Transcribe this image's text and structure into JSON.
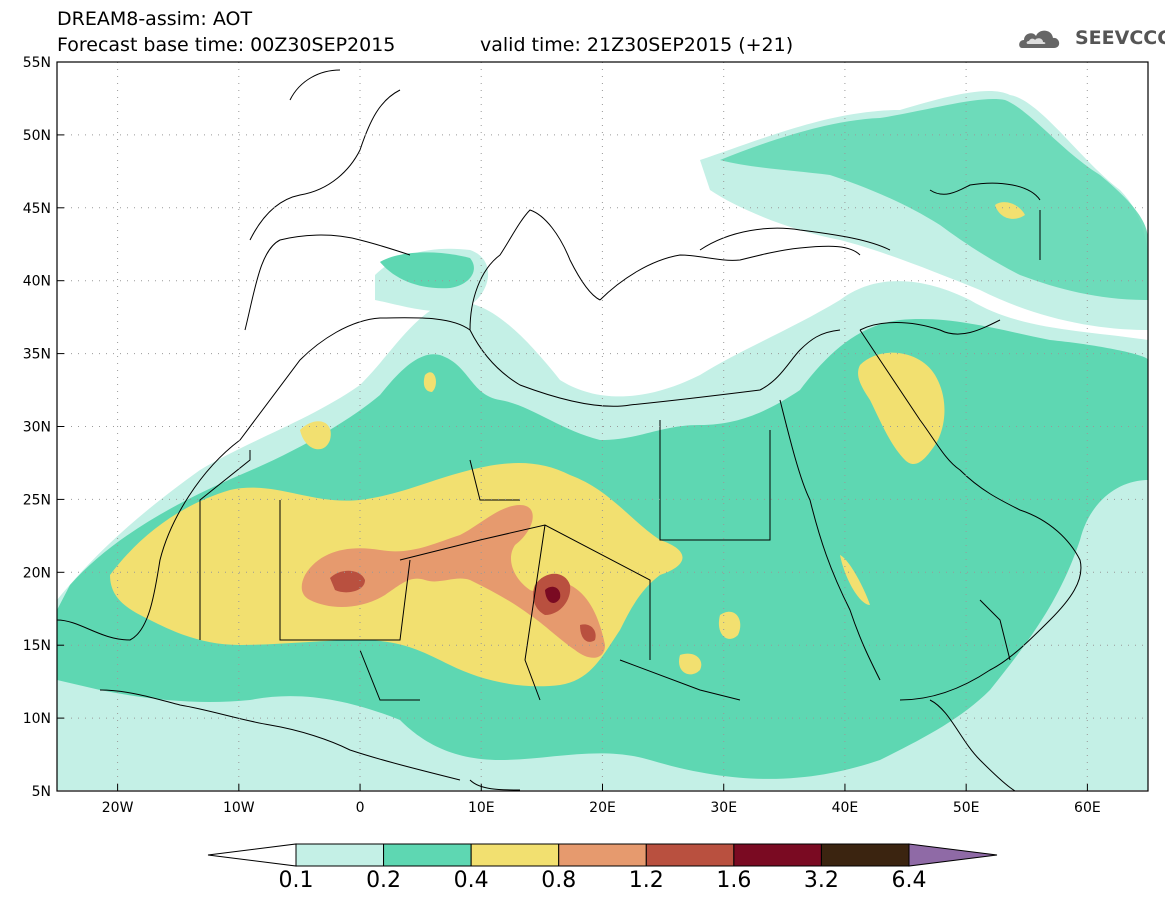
{
  "header": {
    "title": "DREAM8-assim: AOT",
    "base_time": "Forecast base time: 00Z30SEP2015",
    "valid_time": "valid time: 21Z30SEP2015 (+21)",
    "logo_text": "SEEVCCC",
    "logo_icon": "cloud-logo-icon"
  },
  "map": {
    "lon_range": [
      -25,
      65
    ],
    "lat_range": [
      5,
      55
    ],
    "x_tick_labels": [
      "20W",
      "10W",
      "0",
      "10E",
      "20E",
      "30E",
      "40E",
      "50E",
      "60E"
    ],
    "x_tick_values": [
      -20,
      -10,
      0,
      10,
      20,
      30,
      40,
      50,
      60
    ],
    "y_tick_labels": [
      "55N",
      "50N",
      "45N",
      "40N",
      "35N",
      "30N",
      "25N",
      "20N",
      "15N",
      "10N",
      "5N"
    ],
    "y_tick_values": [
      55,
      50,
      45,
      40,
      35,
      30,
      25,
      20,
      15,
      10,
      5
    ],
    "variable": "Aerosol optical thickness"
  },
  "colorbar": {
    "labels": [
      "0.1",
      "0.2",
      "0.4",
      "0.8",
      "1.2",
      "1.6",
      "3.2",
      "6.4"
    ],
    "colors": [
      "#ffffff",
      "#c4f0e6",
      "#5ed7b2",
      "#f2e070",
      "#e69a6e",
      "#b9503f",
      "#7a0a22",
      "#3b2410",
      "#8f6aa6"
    ]
  }
}
